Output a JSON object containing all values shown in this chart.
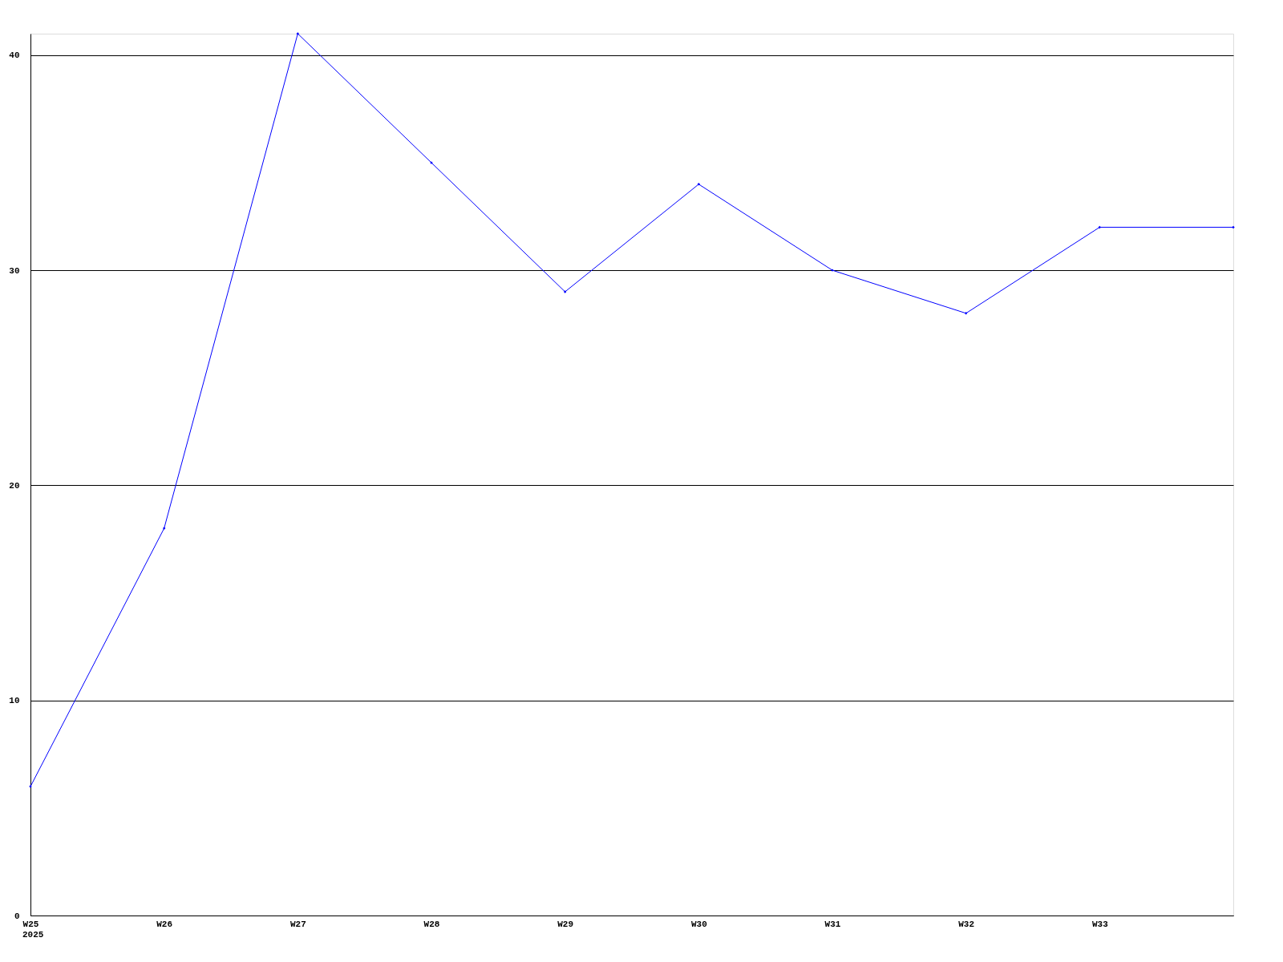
{
  "chart_data": {
    "type": "line",
    "categories": [
      "W25",
      "W26",
      "W27",
      "W28",
      "W29",
      "W30",
      "W31",
      "W32",
      "W33",
      null
    ],
    "series": [
      {
        "color": "#0000ff",
        "values": [
          6,
          18,
          41,
          35,
          29,
          34,
          30,
          28,
          32,
          32
        ]
      }
    ],
    "ylim": [
      0,
      41
    ],
    "yticks": [
      0,
      10,
      20,
      30,
      40
    ],
    "grid": "y",
    "marker": "diamond",
    "line_style": "solid",
    "annotations": [
      "2025"
    ]
  }
}
